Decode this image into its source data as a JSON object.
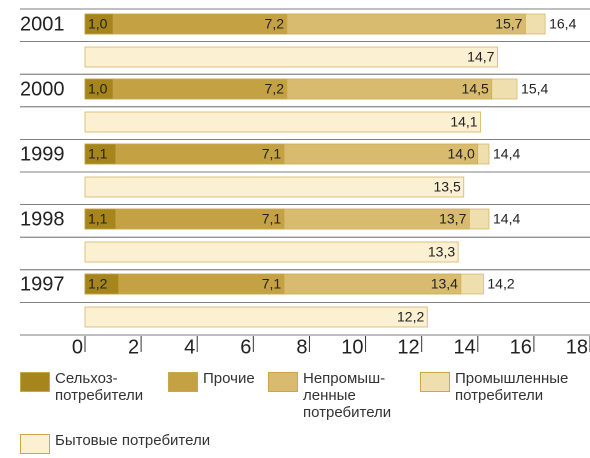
{
  "chart_data": {
    "type": "bar",
    "categories": [
      "2001",
      "2000",
      "1999",
      "1998",
      "1997"
    ],
    "series": [
      {
        "name": "Сельхоз-\nпотребители",
        "color": "#a5851c",
        "values": [
          1.0,
          1.0,
          1.1,
          1.1,
          1.2
        ],
        "value_labels": [
          "1,0",
          "1,0",
          "1,1",
          "1,1",
          "1,2"
        ]
      },
      {
        "name": "Прочие",
        "color": "#c4a243",
        "values": [
          7.2,
          7.2,
          7.1,
          7.1,
          7.1
        ],
        "value_labels": [
          "7,2",
          "7,2",
          "7,1",
          "7,1",
          "7,1"
        ]
      },
      {
        "name": "Непромыш-\nленные\nпотребители",
        "color": "#d8bb6e",
        "values": [
          15.7,
          14.5,
          14.0,
          13.7,
          13.4
        ],
        "value_labels": [
          "15,7",
          "14,5",
          "14,0",
          "13,7",
          "13,4"
        ]
      },
      {
        "name": "Промышленные\nпотребители",
        "color": "#efdfae",
        "values": [
          16.4,
          15.4,
          14.4,
          14.4,
          14.2
        ],
        "value_labels": [
          "16,4",
          "15,4",
          "14,4",
          "14,4",
          "14,2"
        ]
      },
      {
        "name": "Бытовые потребители",
        "color": "#fcf0d3",
        "values": [
          14.7,
          14.1,
          13.5,
          13.3,
          12.2
        ],
        "value_labels": [
          "14,7",
          "14,1",
          "13,5",
          "13,3",
          "12,2"
        ]
      }
    ],
    "xlim": [
      0,
      18
    ],
    "xticks": [
      0,
      2,
      4,
      6,
      8,
      10,
      12,
      14,
      16,
      18
    ]
  }
}
